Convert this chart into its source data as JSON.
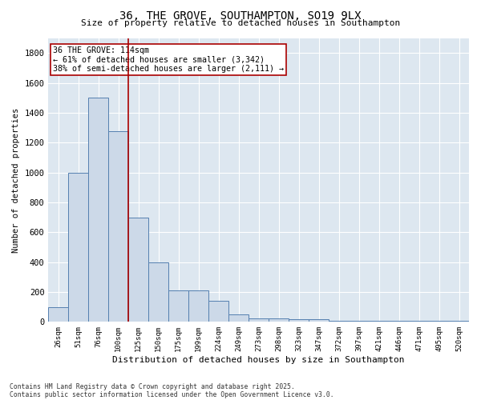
{
  "title_line1": "36, THE GROVE, SOUTHAMPTON, SO19 9LX",
  "title_line2": "Size of property relative to detached houses in Southampton",
  "xlabel": "Distribution of detached houses by size in Southampton",
  "ylabel": "Number of detached properties",
  "categories": [
    "26sqm",
    "51sqm",
    "76sqm",
    "100sqm",
    "125sqm",
    "150sqm",
    "175sqm",
    "199sqm",
    "224sqm",
    "249sqm",
    "273sqm",
    "298sqm",
    "323sqm",
    "347sqm",
    "372sqm",
    "397sqm",
    "421sqm",
    "446sqm",
    "471sqm",
    "495sqm",
    "520sqm"
  ],
  "values": [
    100,
    1000,
    1500,
    1275,
    700,
    400,
    210,
    210,
    140,
    50,
    25,
    25,
    20,
    20,
    5,
    5,
    5,
    5,
    5,
    5,
    5
  ],
  "bar_color": "#ccd9e8",
  "bar_edge_color": "#5580b0",
  "vline_x": 3.5,
  "vline_color": "#aa0000",
  "annotation_title": "36 THE GROVE: 114sqm",
  "annotation_line1": "← 61% of detached houses are smaller (3,342)",
  "annotation_line2": "38% of semi-detached houses are larger (2,111) →",
  "annotation_box_color": "#aa0000",
  "ylim": [
    0,
    1900
  ],
  "yticks": [
    0,
    200,
    400,
    600,
    800,
    1000,
    1200,
    1400,
    1600,
    1800
  ],
  "plot_background": "#dde7f0",
  "footer_line1": "Contains HM Land Registry data © Crown copyright and database right 2025.",
  "footer_line2": "Contains public sector information licensed under the Open Government Licence v3.0."
}
